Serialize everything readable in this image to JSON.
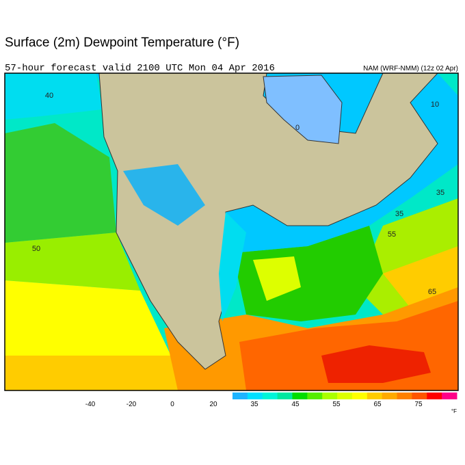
{
  "header": {
    "title": "Surface (2m) Dewpoint Temperature (°F)",
    "subtitle": "57-hour forecast valid 2100 UTC Mon 04 Apr 2016",
    "model": "NAM (WRF-NMM) (12z 02 Apr)"
  },
  "map": {
    "contour_labels": [
      "40",
      "0",
      "10",
      "35",
      "35",
      "55",
      "50",
      "65"
    ]
  },
  "colorbar": {
    "labels": [
      "-40",
      "-20",
      "0",
      "20",
      "35",
      "45",
      "55",
      "65",
      "75"
    ],
    "colors": [
      "#1eb4ff",
      "#00e0ff",
      "#00f5d8",
      "#00e8a0",
      "#00dd00",
      "#55ee00",
      "#aaff00",
      "#ddff00",
      "#ffff00",
      "#ffcc00",
      "#ffaa00",
      "#ff8000",
      "#ff5500",
      "#ff0000",
      "#ff0088"
    ],
    "unit": "°F"
  }
}
